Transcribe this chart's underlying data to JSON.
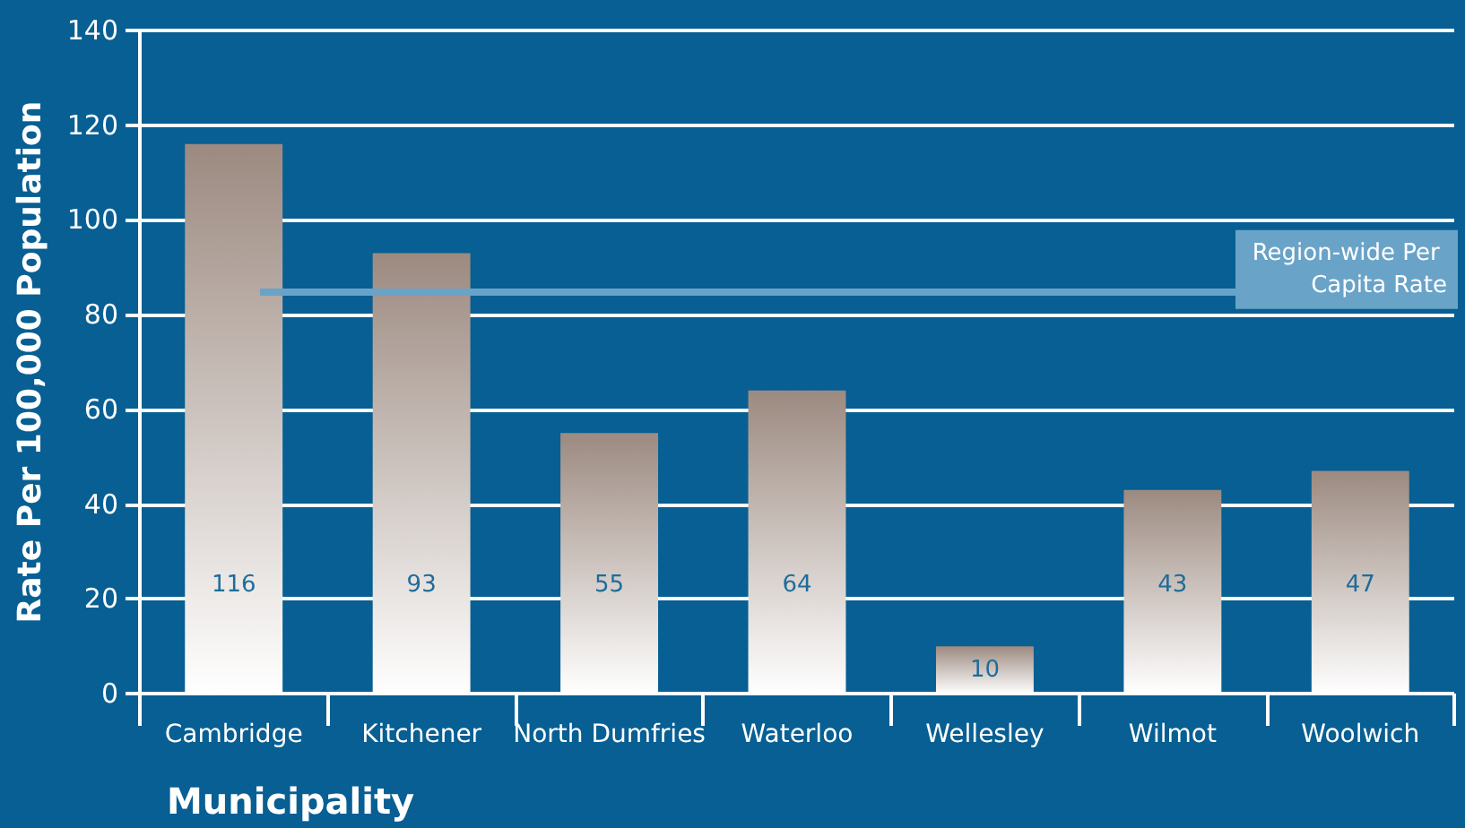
{
  "chart_data": {
    "type": "bar",
    "xlabel": "Municipality",
    "ylabel": "Rate Per 100,000 Population",
    "categories": [
      "Cambridge",
      "Kitchener",
      "North Dumfries",
      "Waterloo",
      "Wellesley",
      "Wilmot",
      "Woolwich"
    ],
    "values": [
      116,
      93,
      55,
      64,
      10,
      43,
      47
    ],
    "color": "#9c8a80",
    "data_labels": true,
    "ylim": [
      0,
      140
    ],
    "yticks": [
      0,
      20,
      40,
      60,
      80,
      100,
      120,
      140
    ],
    "grid": "y",
    "ref_lines": [
      {
        "axis": "y",
        "value": 85,
        "label": "Region-wide Per Capita Rate",
        "color": "#6aa3c8"
      }
    ]
  }
}
